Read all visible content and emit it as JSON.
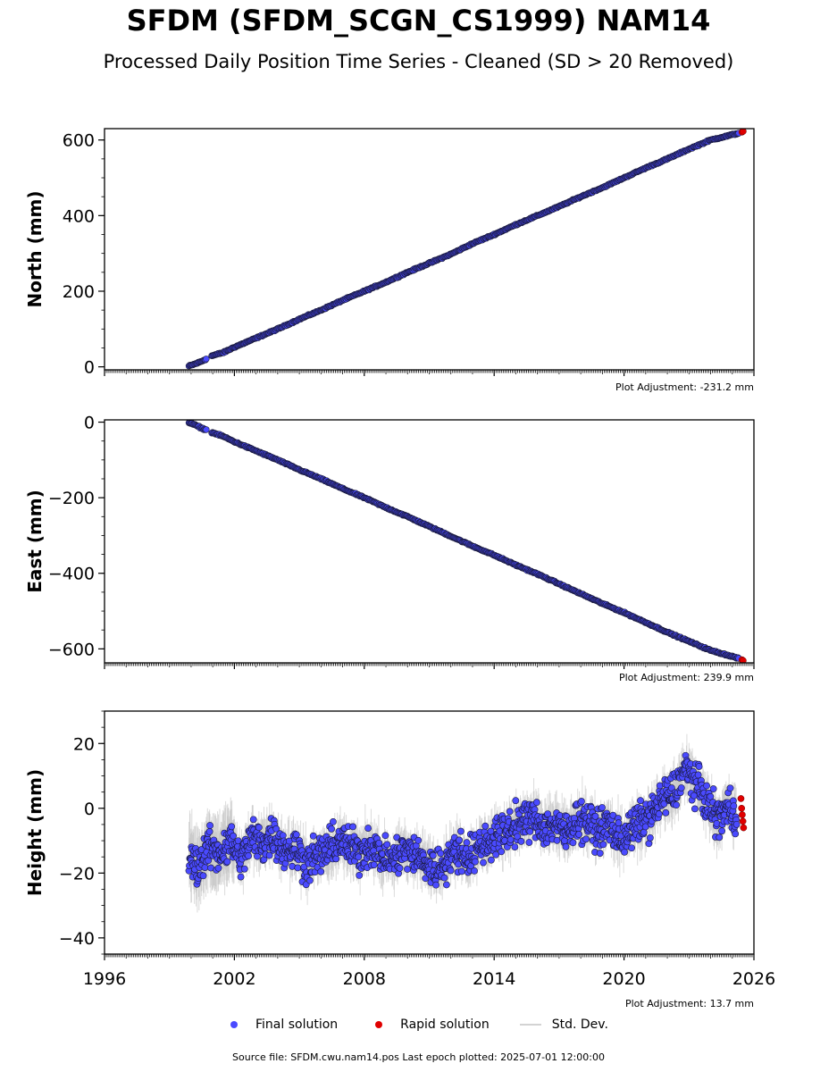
{
  "page": {
    "title": "SFDM (SFDM_SCGN_CS1999) NAM14",
    "subtitle": "Processed Daily Position Time Series - Cleaned (SD > 20 Removed)",
    "source": "Source file: SFDM.cwu.nam14.pos  Last epoch plotted: 2025-07-01 12:00:00"
  },
  "legend": {
    "items": [
      {
        "label": "Final solution",
        "icon": "blue-dot",
        "color": "#4a4aff"
      },
      {
        "label": "Rapid solution",
        "icon": "red-dot",
        "color": "#e00000"
      },
      {
        "label": "Std. Dev.",
        "icon": "gray-line",
        "color": "#d3d3d3"
      }
    ]
  },
  "colors": {
    "final": "#4a4aff",
    "rapid": "#e00000",
    "stddev": "#bdbdbd",
    "edge": "#1a1a3a"
  },
  "chart_data": [
    {
      "type": "scatter",
      "ylabel": "North (mm)",
      "xlim": [
        1996,
        2026
      ],
      "ylim": [
        -8,
        630
      ],
      "yticks": [
        0,
        200,
        400,
        600
      ],
      "ytick_labels": [
        "0",
        "200",
        "400",
        "600"
      ],
      "xticks": [
        1996,
        2002,
        2008,
        2014,
        2020,
        2026
      ],
      "xtick_labels": [],
      "adjustment": "Plot Adjustment: -231.2 mm",
      "final_solution": {
        "x": [
          1999.9,
          2000.2,
          2000.5,
          2001.0,
          2001.5,
          2002.0,
          2003.0,
          2004.0,
          2005.0,
          2006.0,
          2007.0,
          2008.0,
          2009.0,
          2010.0,
          2011.0,
          2012.0,
          2013.0,
          2014.0,
          2015.0,
          2016.0,
          2017.0,
          2018.0,
          2019.0,
          2020.0,
          2021.0,
          2022.0,
          2023.0,
          2024.0,
          2025.0,
          2025.3
        ],
        "y": [
          2,
          8,
          15,
          30,
          38,
          52,
          76,
          100,
          126,
          150,
          176,
          200,
          224,
          250,
          274,
          298,
          326,
          350,
          376,
          400,
          424,
          450,
          474,
          500,
          526,
          550,
          576,
          600,
          614,
          618
        ]
      },
      "rapid_solution": {
        "x": [
          2025.45,
          2025.5
        ],
        "y": [
          621,
          623
        ]
      }
    },
    {
      "type": "scatter",
      "ylabel": "East (mm)",
      "xlim": [
        1996,
        2026
      ],
      "ylim": [
        -637,
        6
      ],
      "yticks": [
        0,
        -200,
        -400,
        -600
      ],
      "ytick_labels": [
        "0",
        "−200",
        "−400",
        "−600"
      ],
      "xticks": [
        1996,
        2002,
        2008,
        2014,
        2020,
        2026
      ],
      "xtick_labels": [],
      "adjustment": "Plot Adjustment: 239.9 mm",
      "final_solution": {
        "x": [
          1999.9,
          2000.2,
          2000.5,
          2001.0,
          2001.5,
          2002.0,
          2003.0,
          2004.0,
          2005.0,
          2006.0,
          2007.0,
          2008.0,
          2009.0,
          2010.0,
          2011.0,
          2012.0,
          2013.0,
          2014.0,
          2015.0,
          2016.0,
          2017.0,
          2018.0,
          2019.0,
          2020.0,
          2021.0,
          2022.0,
          2023.0,
          2024.0,
          2025.0,
          2025.3
        ],
        "y": [
          -1,
          -8,
          -16,
          -28,
          -38,
          -52,
          -76,
          -100,
          -126,
          -150,
          -176,
          -200,
          -226,
          -250,
          -276,
          -302,
          -328,
          -352,
          -378,
          -402,
          -428,
          -454,
          -480,
          -504,
          -530,
          -556,
          -580,
          -604,
          -620,
          -625
        ]
      },
      "rapid_solution": {
        "x": [
          2025.45,
          2025.5
        ],
        "y": [
          -629,
          -631
        ]
      }
    },
    {
      "type": "scatter",
      "ylabel": "Height (mm)",
      "xlim": [
        1996,
        2026
      ],
      "ylim": [
        -45,
        30
      ],
      "yticks": [
        20,
        0,
        -20,
        -40
      ],
      "ytick_labels": [
        "20",
        "0",
        "−20",
        "−40"
      ],
      "xticks": [
        1996,
        2002,
        2008,
        2014,
        2020,
        2026
      ],
      "xtick_labels": [
        "1996",
        "2002",
        "2008",
        "2014",
        "2020",
        "2026"
      ],
      "adjustment": "Plot Adjustment: 13.7 mm",
      "final_solution": {
        "x": [
          1999.9,
          2000.3,
          2000.8,
          2001.3,
          2001.8,
          2002.3,
          2002.8,
          2003.3,
          2003.8,
          2004.3,
          2004.8,
          2005.3,
          2005.8,
          2006.3,
          2006.8,
          2007.3,
          2007.8,
          2008.3,
          2008.8,
          2009.3,
          2009.8,
          2010.3,
          2010.8,
          2011.3,
          2011.8,
          2012.3,
          2012.8,
          2013.3,
          2013.8,
          2014.3,
          2014.8,
          2015.3,
          2015.8,
          2016.3,
          2016.8,
          2017.3,
          2017.8,
          2018.3,
          2018.8,
          2019.3,
          2019.8,
          2020.3,
          2020.8,
          2021.3,
          2021.8,
          2022.3,
          2022.8,
          2023.3,
          2023.8,
          2024.3,
          2024.8,
          2025.2
        ],
        "y": [
          -15,
          -18,
          -12,
          -14,
          -10,
          -16,
          -9,
          -11,
          -8,
          -13,
          -12,
          -17,
          -15,
          -13,
          -10,
          -12,
          -14,
          -11,
          -15,
          -16,
          -13,
          -14,
          -17,
          -19,
          -16,
          -13,
          -15,
          -12,
          -10,
          -8,
          -6,
          -4,
          -3,
          -6,
          -5,
          -8,
          -3,
          -4,
          -7,
          -5,
          -10,
          -7,
          -4,
          -2,
          3,
          5,
          12,
          8,
          2,
          -3,
          0,
          -2
        ]
      },
      "rapid_solution": {
        "x": [
          2025.4,
          2025.43,
          2025.46,
          2025.49,
          2025.52
        ],
        "y": [
          3,
          0,
          -2,
          -4,
          -6
        ]
      }
    }
  ]
}
